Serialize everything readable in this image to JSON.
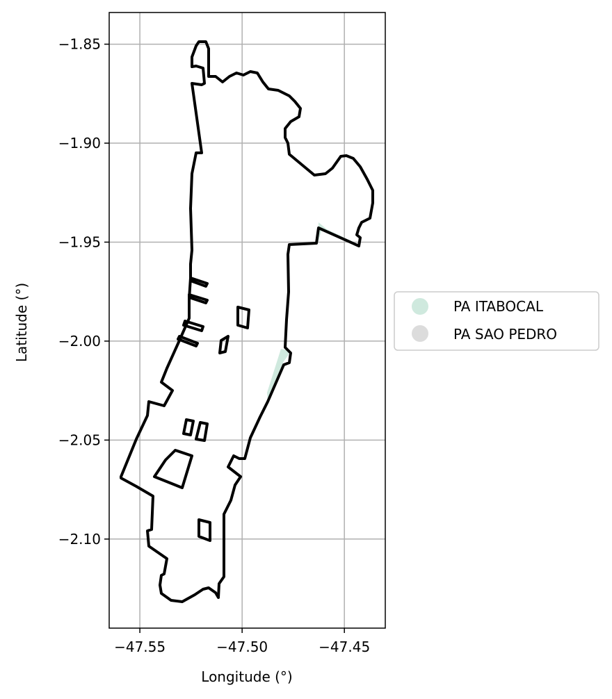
{
  "chart_data": {
    "type": "map",
    "xlabel": "Longitude (°)",
    "ylabel": "Latitude (°)",
    "xlim": [
      -47.565,
      -47.43
    ],
    "ylim": [
      -2.145,
      -1.834
    ],
    "grid": true,
    "legend_placement": "center-right, outside plot",
    "x_ticks": [
      {
        "value": -47.55,
        "label": "−47.55"
      },
      {
        "value": -47.5,
        "label": "−47.50"
      },
      {
        "value": -47.45,
        "label": "−47.45"
      }
    ],
    "y_ticks": [
      {
        "value": -1.85,
        "label": "−1.85"
      },
      {
        "value": -1.9,
        "label": "−1.90"
      },
      {
        "value": -1.95,
        "label": "−1.95"
      },
      {
        "value": -2.0,
        "label": "−2.00"
      },
      {
        "value": -2.05,
        "label": "−2.05"
      },
      {
        "value": -2.1,
        "label": "−2.10"
      }
    ],
    "series": [
      {
        "name": "PA ITABOCAL",
        "color": "#cfe9de"
      },
      {
        "name": "PA SAO PEDRO",
        "color": "#dcdcdc"
      }
    ]
  },
  "colors": {
    "boundary": "#000000",
    "grid": "#b0b0b0"
  }
}
